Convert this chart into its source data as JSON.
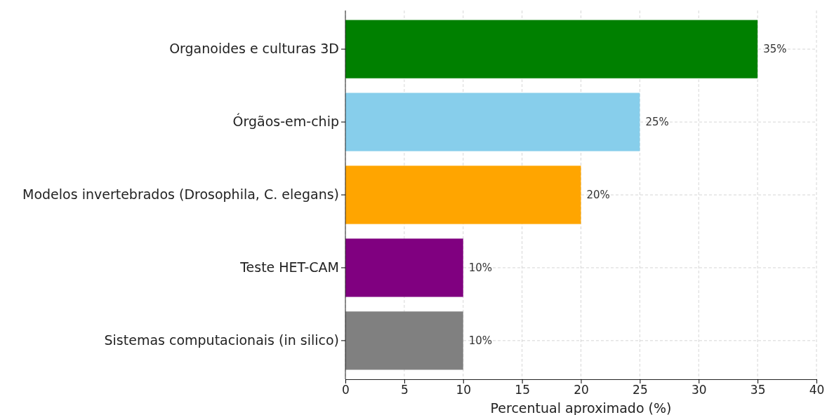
{
  "chart_data": {
    "type": "bar",
    "orientation": "horizontal",
    "xlabel": "Percentual aproximado (%)",
    "categories": [
      "Organoides e culturas 3D",
      "Órgãos-em-chip",
      "Modelos invertebrados (Drosophila, C. elegans)",
      "Teste HET-CAM",
      "Sistemas computacionais (in silico)"
    ],
    "values": [
      35,
      25,
      20,
      10,
      10
    ],
    "colors": [
      "#008000",
      "#87ceeb",
      "#ffa500",
      "#800080",
      "#808080"
    ],
    "value_labels": [
      "35%",
      "25%",
      "20%",
      "10%",
      "10%"
    ],
    "xlim": [
      0,
      40
    ],
    "xticks": [
      0,
      5,
      10,
      15,
      20,
      25,
      30,
      35,
      40
    ],
    "grid": true
  }
}
